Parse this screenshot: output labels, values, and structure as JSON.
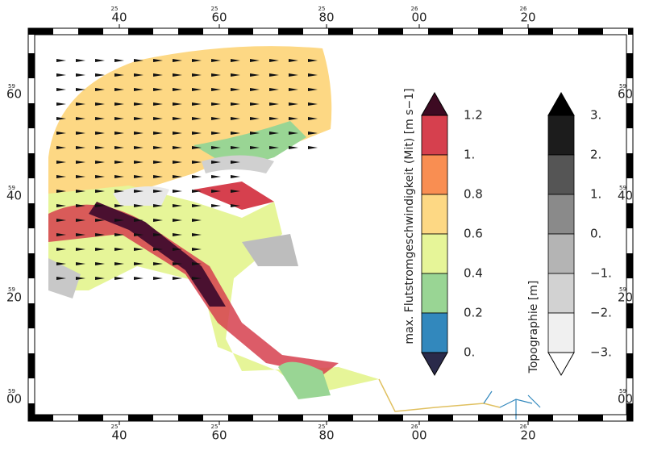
{
  "frame": {
    "x_labels": [
      {
        "prefix": "25",
        "label": "40"
      },
      {
        "prefix": "25",
        "label": "60"
      },
      {
        "prefix": "25",
        "label": "80"
      },
      {
        "prefix": "26",
        "label": "00"
      },
      {
        "prefix": "26",
        "label": "20"
      }
    ],
    "y_labels": [
      {
        "prefix": "59",
        "label": "60"
      },
      {
        "prefix": "59",
        "label": "40"
      },
      {
        "prefix": "59",
        "label": "20"
      },
      {
        "prefix": "59",
        "label": "00"
      }
    ]
  },
  "colorbars": [
    {
      "title": "max. Flutstromgeschwindigkeit (Mit) [m s−1]",
      "labels": [
        "1.2",
        "1.",
        "0.8",
        "0.6",
        "0.4",
        "0.2",
        "0."
      ]
    },
    {
      "title": "Topographie [m]",
      "labels": [
        "3.",
        "2.",
        "1.",
        "0.",
        "−1.",
        "−2.",
        "−3."
      ]
    }
  ]
}
